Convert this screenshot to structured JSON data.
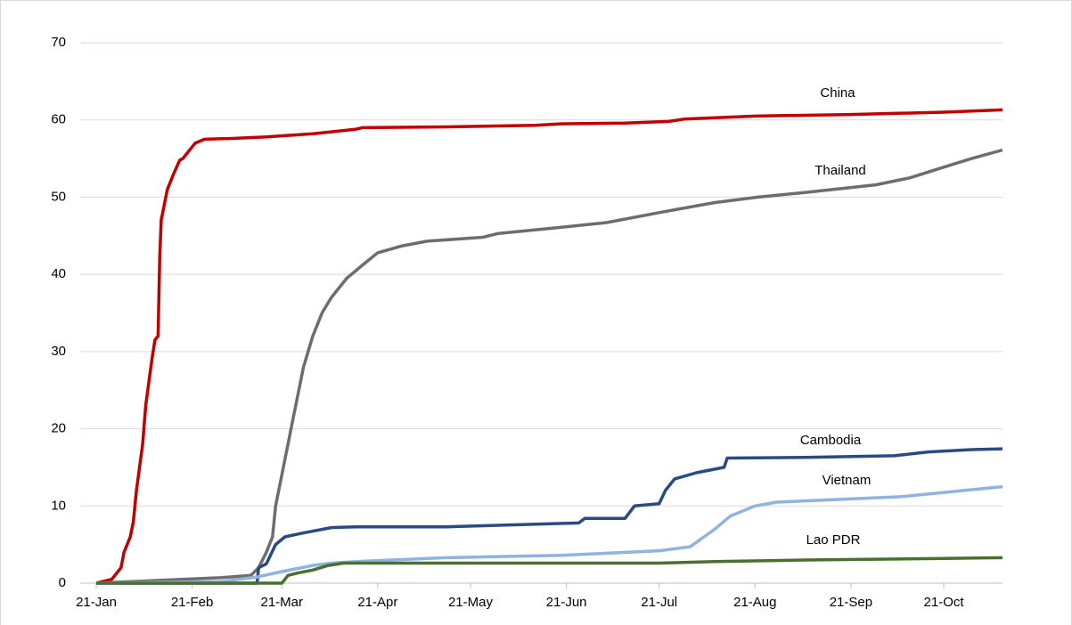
{
  "chart_data": {
    "type": "line",
    "xlim": [
      0,
      293
    ],
    "xticks": [
      {
        "value": 0,
        "label": "21-Jan"
      },
      {
        "value": 31,
        "label": "21-Feb"
      },
      {
        "value": 60,
        "label": "21-Mar"
      },
      {
        "value": 91,
        "label": "21-Apr"
      },
      {
        "value": 121,
        "label": "21-May"
      },
      {
        "value": 152,
        "label": "21-Jun"
      },
      {
        "value": 182,
        "label": "21-Jul"
      },
      {
        "value": 213,
        "label": "21-Aug"
      },
      {
        "value": 244,
        "label": "21-Sep"
      },
      {
        "value": 274,
        "label": "21-Oct"
      }
    ],
    "ylim": [
      0,
      70
    ],
    "yticks": [
      0,
      10,
      20,
      30,
      40,
      50,
      60,
      70
    ],
    "grid": true,
    "series": [
      {
        "name": "China",
        "color": "#c00000",
        "x": [
          0,
          5,
          8,
          9,
          11,
          12,
          13,
          15,
          16,
          18,
          19,
          20,
          20.5,
          21,
          23,
          25,
          27,
          28,
          30,
          32,
          35,
          44,
          55,
          70,
          84,
          86,
          113,
          142,
          150,
          171,
          185,
          190,
          213,
          244,
          274,
          293
        ],
        "values": [
          0,
          0.5,
          2,
          4,
          6,
          8,
          12,
          18,
          23,
          29,
          31.5,
          32,
          42,
          47,
          51,
          53,
          54.8,
          55,
          56,
          57,
          57.5,
          57.6,
          57.8,
          58.2,
          58.8,
          59,
          59.1,
          59.3,
          59.5,
          59.6,
          59.8,
          60.1,
          60.5,
          60.7,
          61,
          61.3
        ]
      },
      {
        "name": "Thailand",
        "color": "#6d6d6d",
        "x": [
          0,
          40,
          50,
          52.5,
          55,
          57,
          58,
          61,
          64,
          67,
          70,
          73,
          76,
          81,
          87,
          91,
          99,
          107,
          125,
          130,
          148,
          165,
          182,
          200,
          214,
          229,
          252,
          263,
          275,
          283,
          293
        ],
        "values": [
          0,
          0.7,
          1,
          2,
          4,
          6,
          10,
          16,
          22,
          28,
          32,
          35,
          37,
          39.5,
          41.5,
          42.8,
          43.7,
          44.3,
          44.8,
          45.3,
          46,
          46.7,
          48,
          49.3,
          50,
          50.6,
          51.6,
          52.5,
          54,
          55,
          56.1
        ]
      },
      {
        "name": "Cambodia",
        "color": "#2a4b82",
        "x": [
          0,
          52,
          52.5,
          55,
          58,
          61,
          67,
          76,
          84,
          113,
          130,
          156,
          158,
          171,
          174,
          182,
          184,
          187,
          194,
          203,
          204,
          229,
          258,
          269,
          283,
          293
        ],
        "values": [
          0,
          0,
          2,
          2.5,
          5,
          6,
          6.5,
          7.2,
          7.3,
          7.3,
          7.5,
          7.8,
          8.4,
          8.4,
          10,
          10.3,
          12,
          13.5,
          14.3,
          15,
          16.2,
          16.3,
          16.5,
          17,
          17.3,
          17.4
        ]
      },
      {
        "name": "Vietnam",
        "color": "#8db4e2",
        "x": [
          0,
          40,
          52,
          60,
          70,
          76,
          84,
          113,
          150,
          182,
          192,
          200,
          205,
          213,
          220,
          260,
          293
        ],
        "values": [
          0,
          0.2,
          0.8,
          1.5,
          2.3,
          2.6,
          2.8,
          3.3,
          3.6,
          4.2,
          4.7,
          7,
          8.7,
          10,
          10.5,
          11.2,
          12.5
        ]
      },
      {
        "name": "Lao PDR",
        "color": "#4a7030",
        "x": [
          0,
          60,
          62,
          65,
          70,
          75,
          80,
          182,
          200,
          229,
          274,
          293
        ],
        "values": [
          0,
          0,
          1,
          1.3,
          1.7,
          2.3,
          2.6,
          2.6,
          2.8,
          3,
          3.2,
          3.3
        ]
      }
    ]
  }
}
